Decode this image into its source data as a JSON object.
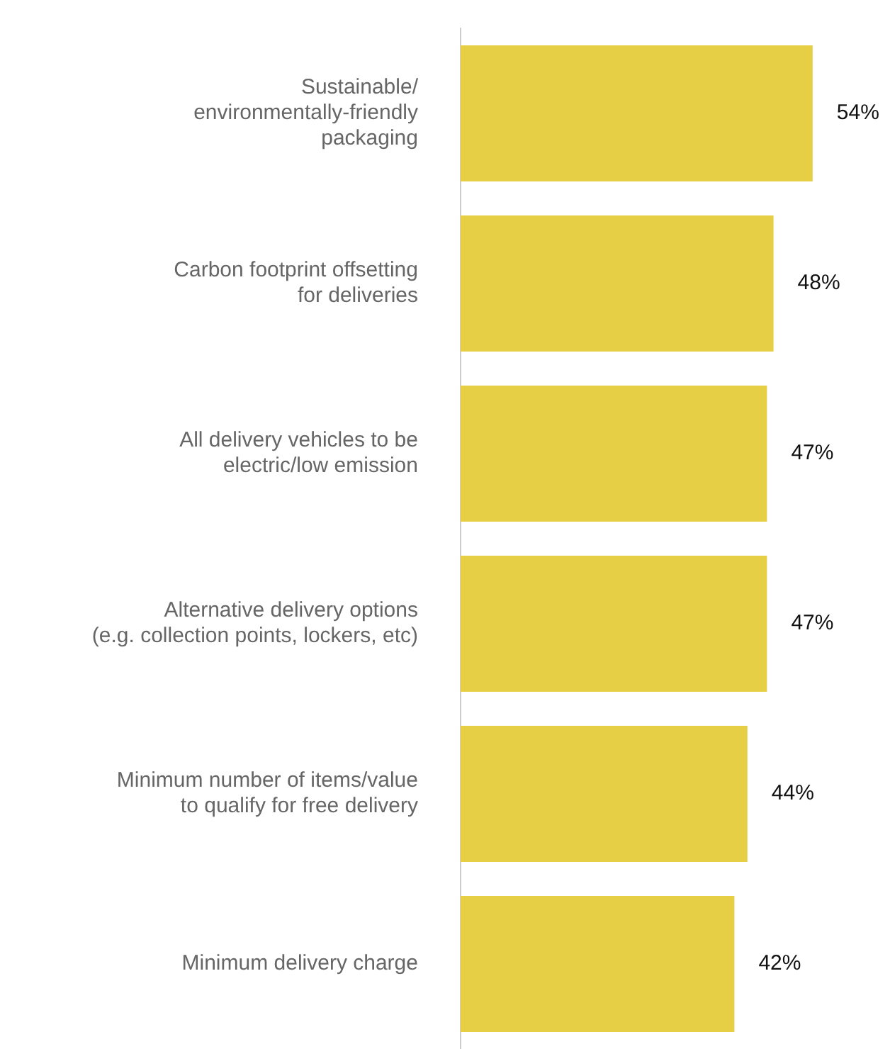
{
  "chart_data": {
    "type": "bar",
    "orientation": "horizontal",
    "categories": [
      "Sustainable/\nenvironmentally-friendly\npackaging",
      "Carbon footprint offsetting\nfor deliveries",
      "All delivery vehicles to be\nelectric/low emission",
      "Alternative delivery options\n(e.g. collection points, lockers, etc)",
      "Minimum number of items/value\nto qualify for free delivery",
      "Minimum delivery charge"
    ],
    "values": [
      54,
      48,
      47,
      47,
      44,
      42
    ],
    "value_labels": [
      "54%",
      "48%",
      "47%",
      "47%",
      "44%",
      "42%"
    ],
    "color": "#e6cf45",
    "grid": false,
    "legend": false
  }
}
